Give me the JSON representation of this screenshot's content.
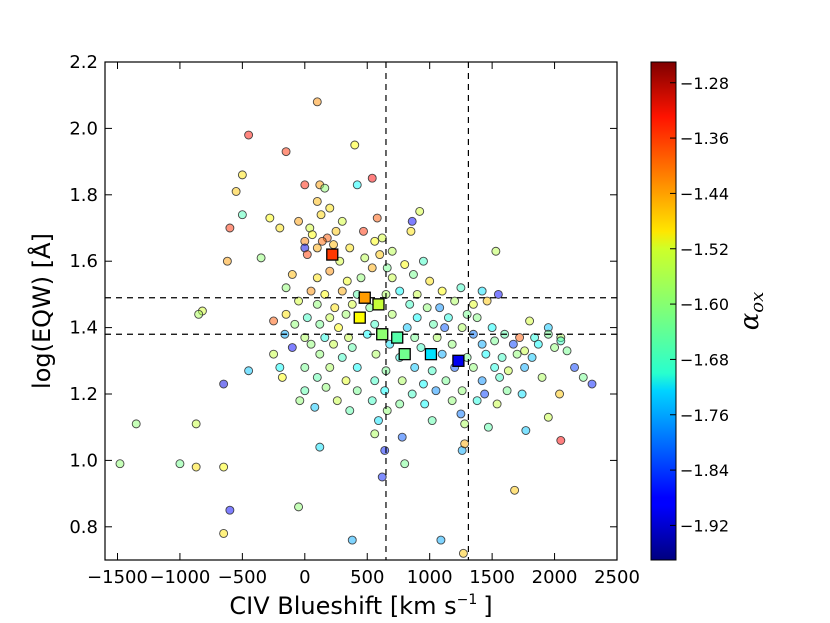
{
  "chart_data": {
    "type": "scatter",
    "xlabel": "CIV Blueshift [km s",
    "xlabel_sup": "−1",
    "xlabel_end": "]",
    "ylabel": "log(EQW) [Å]",
    "colorbar_label_main": "α",
    "colorbar_label_sub": "ox",
    "xlim": [
      -1600,
      2500
    ],
    "ylim": [
      0.7,
      2.2
    ],
    "xticks": [
      {
        "value": -1500,
        "label": "−1500"
      },
      {
        "value": -1000,
        "label": "−1000"
      },
      {
        "value": -500,
        "label": "−500"
      },
      {
        "value": 0,
        "label": "0"
      },
      {
        "value": 500,
        "label": "500"
      },
      {
        "value": 1000,
        "label": "1000"
      },
      {
        "value": 1500,
        "label": "1500"
      },
      {
        "value": 2000,
        "label": "2000"
      },
      {
        "value": 2500,
        "label": "2500"
      }
    ],
    "yticks": [
      {
        "value": 0.8,
        "label": "0.8"
      },
      {
        "value": 1.0,
        "label": "1.0"
      },
      {
        "value": 1.2,
        "label": "1.2"
      },
      {
        "value": 1.4,
        "label": "1.4"
      },
      {
        "value": 1.6,
        "label": "1.6"
      },
      {
        "value": 1.8,
        "label": "1.8"
      },
      {
        "value": 2.0,
        "label": "2.0"
      },
      {
        "value": 2.2,
        "label": "2.2"
      }
    ],
    "colorbar": {
      "range": [
        -1.97,
        -1.25
      ],
      "ticks": [
        {
          "value": -1.28,
          "label": "−1.28"
        },
        {
          "value": -1.36,
          "label": "−1.36"
        },
        {
          "value": -1.44,
          "label": "−1.44"
        },
        {
          "value": -1.52,
          "label": "−1.52"
        },
        {
          "value": -1.6,
          "label": "−1.60"
        },
        {
          "value": -1.68,
          "label": "−1.68"
        },
        {
          "value": -1.76,
          "label": "−1.76"
        },
        {
          "value": -1.84,
          "label": "−1.84"
        },
        {
          "value": -1.92,
          "label": "−1.92"
        }
      ]
    },
    "vlines_x": [
      650,
      1310
    ],
    "hlines_y": [
      1.49,
      1.38
    ],
    "binned_means": [
      {
        "x": 220,
        "y": 1.62,
        "c": -1.38
      },
      {
        "x": 480,
        "y": 1.49,
        "c": -1.45
      },
      {
        "x": 590,
        "y": 1.47,
        "c": -1.56
      },
      {
        "x": 440,
        "y": 1.43,
        "c": -1.52
      },
      {
        "x": 620,
        "y": 1.38,
        "c": -1.6
      },
      {
        "x": 740,
        "y": 1.37,
        "c": -1.64
      },
      {
        "x": 800,
        "y": 1.32,
        "c": -1.62
      },
      {
        "x": 1010,
        "y": 1.32,
        "c": -1.72
      },
      {
        "x": 1230,
        "y": 1.3,
        "c": -1.89
      }
    ],
    "points": [
      {
        "x": 100,
        "y": 2.08,
        "c": -1.44
      },
      {
        "x": -450,
        "y": 1.98,
        "c": -1.35
      },
      {
        "x": -150,
        "y": 1.93,
        "c": -1.37
      },
      {
        "x": 400,
        "y": 1.95,
        "c": -1.52
      },
      {
        "x": -500,
        "y": 1.86,
        "c": -1.5
      },
      {
        "x": 540,
        "y": 1.85,
        "c": -1.34
      },
      {
        "x": 0,
        "y": 1.83,
        "c": -1.36
      },
      {
        "x": 120,
        "y": 1.83,
        "c": -1.45
      },
      {
        "x": 160,
        "y": 1.82,
        "c": -1.6
      },
      {
        "x": 420,
        "y": 1.83,
        "c": -1.7
      },
      {
        "x": -550,
        "y": 1.81,
        "c": -1.48
      },
      {
        "x": 100,
        "y": 1.78,
        "c": -1.47
      },
      {
        "x": 200,
        "y": 1.76,
        "c": -1.5
      },
      {
        "x": -500,
        "y": 1.74,
        "c": -1.65
      },
      {
        "x": -280,
        "y": 1.73,
        "c": -1.52
      },
      {
        "x": -50,
        "y": 1.72,
        "c": -1.45
      },
      {
        "x": 40,
        "y": 1.7,
        "c": -1.55
      },
      {
        "x": 130,
        "y": 1.74,
        "c": -1.49
      },
      {
        "x": 300,
        "y": 1.72,
        "c": -1.55
      },
      {
        "x": 580,
        "y": 1.73,
        "c": -1.4
      },
      {
        "x": 860,
        "y": 1.72,
        "c": -1.88
      },
      {
        "x": 920,
        "y": 1.75,
        "c": -1.55
      },
      {
        "x": -600,
        "y": 1.7,
        "c": -1.37
      },
      {
        "x": -200,
        "y": 1.7,
        "c": -1.5
      },
      {
        "x": 60,
        "y": 1.68,
        "c": -1.52
      },
      {
        "x": 180,
        "y": 1.67,
        "c": -1.4
      },
      {
        "x": 250,
        "y": 1.69,
        "c": -1.48
      },
      {
        "x": 470,
        "y": 1.69,
        "c": -1.37
      },
      {
        "x": 620,
        "y": 1.67,
        "c": -1.55
      },
      {
        "x": 850,
        "y": 1.69,
        "c": -1.5
      },
      {
        "x": 0,
        "y": 1.66,
        "c": -1.43
      },
      {
        "x": 100,
        "y": 1.64,
        "c": -1.46
      },
      {
        "x": 140,
        "y": 1.66,
        "c": -1.41
      },
      {
        "x": 230,
        "y": 1.65,
        "c": -1.47
      },
      {
        "x": 360,
        "y": 1.64,
        "c": -1.5
      },
      {
        "x": 560,
        "y": 1.66,
        "c": -1.52
      },
      {
        "x": 600,
        "y": 1.62,
        "c": -1.48
      },
      {
        "x": 700,
        "y": 1.63,
        "c": -1.57
      },
      {
        "x": -620,
        "y": 1.6,
        "c": -1.45
      },
      {
        "x": -350,
        "y": 1.61,
        "c": -1.6
      },
      {
        "x": 0,
        "y": 1.64,
        "c": -1.9
      },
      {
        "x": 20,
        "y": 1.62,
        "c": -1.38
      },
      {
        "x": 280,
        "y": 1.6,
        "c": -1.55
      },
      {
        "x": 480,
        "y": 1.61,
        "c": -1.57
      },
      {
        "x": 540,
        "y": 1.58,
        "c": -1.46
      },
      {
        "x": 660,
        "y": 1.58,
        "c": -1.62
      },
      {
        "x": 800,
        "y": 1.59,
        "c": -1.52
      },
      {
        "x": 950,
        "y": 1.6,
        "c": -1.66
      },
      {
        "x": 1530,
        "y": 1.63,
        "c": -1.57
      },
      {
        "x": -100,
        "y": 1.56,
        "c": -1.47
      },
      {
        "x": 100,
        "y": 1.55,
        "c": -1.5
      },
      {
        "x": 200,
        "y": 1.57,
        "c": -1.44
      },
      {
        "x": 340,
        "y": 1.54,
        "c": -1.53
      },
      {
        "x": 450,
        "y": 1.55,
        "c": -1.6
      },
      {
        "x": 700,
        "y": 1.55,
        "c": -1.56
      },
      {
        "x": 870,
        "y": 1.56,
        "c": -1.62
      },
      {
        "x": 1000,
        "y": 1.54,
        "c": -1.5
      },
      {
        "x": -150,
        "y": 1.52,
        "c": -1.6
      },
      {
        "x": 50,
        "y": 1.51,
        "c": -1.44
      },
      {
        "x": 160,
        "y": 1.5,
        "c": -1.52
      },
      {
        "x": 300,
        "y": 1.51,
        "c": -1.46
      },
      {
        "x": 420,
        "y": 1.5,
        "c": -1.64
      },
      {
        "x": 650,
        "y": 1.5,
        "c": -1.58
      },
      {
        "x": 760,
        "y": 1.51,
        "c": -1.7
      },
      {
        "x": 900,
        "y": 1.5,
        "c": -1.56
      },
      {
        "x": 1100,
        "y": 1.51,
        "c": -1.52
      },
      {
        "x": 1250,
        "y": 1.52,
        "c": -1.66
      },
      {
        "x": 1420,
        "y": 1.51,
        "c": -1.72
      },
      {
        "x": 1550,
        "y": 1.5,
        "c": -1.88
      },
      {
        "x": 1200,
        "y": 1.48,
        "c": -1.58
      },
      {
        "x": 1350,
        "y": 1.47,
        "c": -1.54
      },
      {
        "x": 1460,
        "y": 1.48,
        "c": -1.48
      },
      {
        "x": -50,
        "y": 1.48,
        "c": -1.55
      },
      {
        "x": 100,
        "y": 1.47,
        "c": -1.6
      },
      {
        "x": 240,
        "y": 1.46,
        "c": -1.5
      },
      {
        "x": 380,
        "y": 1.47,
        "c": -1.55
      },
      {
        "x": 520,
        "y": 1.46,
        "c": -1.62
      },
      {
        "x": 840,
        "y": 1.47,
        "c": -1.66
      },
      {
        "x": 980,
        "y": 1.46,
        "c": -1.6
      },
      {
        "x": 1080,
        "y": 1.46,
        "c": -1.78
      },
      {
        "x": 1300,
        "y": 1.44,
        "c": -1.62
      },
      {
        "x": -820,
        "y": 1.45,
        "c": -1.55
      },
      {
        "x": -850,
        "y": 1.44,
        "c": -1.58
      },
      {
        "x": -150,
        "y": 1.44,
        "c": -1.5
      },
      {
        "x": 20,
        "y": 1.43,
        "c": -1.66
      },
      {
        "x": 200,
        "y": 1.43,
        "c": -1.56
      },
      {
        "x": 330,
        "y": 1.44,
        "c": -1.59
      },
      {
        "x": 700,
        "y": 1.44,
        "c": -1.58
      },
      {
        "x": 900,
        "y": 1.43,
        "c": -1.7
      },
      {
        "x": 1150,
        "y": 1.43,
        "c": -1.68
      },
      {
        "x": 1380,
        "y": 1.43,
        "c": -1.61
      },
      {
        "x": -250,
        "y": 1.42,
        "c": -1.4
      },
      {
        "x": -80,
        "y": 1.41,
        "c": -1.6
      },
      {
        "x": 120,
        "y": 1.41,
        "c": -1.62
      },
      {
        "x": 270,
        "y": 1.4,
        "c": -1.52
      },
      {
        "x": 560,
        "y": 1.41,
        "c": -1.66
      },
      {
        "x": 820,
        "y": 1.4,
        "c": -1.74
      },
      {
        "x": 1030,
        "y": 1.41,
        "c": -1.64
      },
      {
        "x": 1120,
        "y": 1.4,
        "c": -1.82
      },
      {
        "x": 1260,
        "y": 1.4,
        "c": -1.58
      },
      {
        "x": 1500,
        "y": 1.4,
        "c": -1.7
      },
      {
        "x": 1950,
        "y": 1.4,
        "c": -1.74
      },
      {
        "x": 1800,
        "y": 1.42,
        "c": -1.55
      },
      {
        "x": -160,
        "y": 1.38,
        "c": -1.76
      },
      {
        "x": 0,
        "y": 1.37,
        "c": -1.58
      },
      {
        "x": 160,
        "y": 1.37,
        "c": -1.68
      },
      {
        "x": 350,
        "y": 1.37,
        "c": -1.56
      },
      {
        "x": 500,
        "y": 1.38,
        "c": -1.7
      },
      {
        "x": 880,
        "y": 1.37,
        "c": -1.62
      },
      {
        "x": 1060,
        "y": 1.37,
        "c": -1.58
      },
      {
        "x": 1350,
        "y": 1.38,
        "c": -1.8
      },
      {
        "x": 1600,
        "y": 1.38,
        "c": -1.64
      },
      {
        "x": 1720,
        "y": 1.37,
        "c": -1.4
      },
      {
        "x": 1840,
        "y": 1.37,
        "c": -1.68
      },
      {
        "x": 1950,
        "y": 1.38,
        "c": -1.62
      },
      {
        "x": 2050,
        "y": 1.37,
        "c": -1.58
      },
      {
        "x": -100,
        "y": 1.34,
        "c": -1.88
      },
      {
        "x": 50,
        "y": 1.35,
        "c": -1.6
      },
      {
        "x": 230,
        "y": 1.35,
        "c": -1.56
      },
      {
        "x": 380,
        "y": 1.34,
        "c": -1.64
      },
      {
        "x": 680,
        "y": 1.35,
        "c": -1.72
      },
      {
        "x": 930,
        "y": 1.34,
        "c": -1.66
      },
      {
        "x": 1180,
        "y": 1.35,
        "c": -1.6
      },
      {
        "x": 1420,
        "y": 1.35,
        "c": -1.76
      },
      {
        "x": 1520,
        "y": 1.36,
        "c": -1.62
      },
      {
        "x": 1670,
        "y": 1.35,
        "c": -1.84
      },
      {
        "x": 1760,
        "y": 1.33,
        "c": -1.56
      },
      {
        "x": 1870,
        "y": 1.35,
        "c": -1.7
      },
      {
        "x": 2000,
        "y": 1.34,
        "c": -1.6
      },
      {
        "x": 2050,
        "y": 1.36,
        "c": -1.66
      },
      {
        "x": -250,
        "y": 1.32,
        "c": -1.56
      },
      {
        "x": 120,
        "y": 1.32,
        "c": -1.6
      },
      {
        "x": 300,
        "y": 1.31,
        "c": -1.66
      },
      {
        "x": 570,
        "y": 1.32,
        "c": -1.58
      },
      {
        "x": 760,
        "y": 1.31,
        "c": -1.68
      },
      {
        "x": 1100,
        "y": 1.32,
        "c": -1.76
      },
      {
        "x": 1300,
        "y": 1.31,
        "c": -1.62
      },
      {
        "x": 1450,
        "y": 1.32,
        "c": -1.7
      },
      {
        "x": 1580,
        "y": 1.31,
        "c": -1.66
      },
      {
        "x": 1700,
        "y": 1.32,
        "c": -1.6
      },
      {
        "x": 1820,
        "y": 1.31,
        "c": -1.74
      },
      {
        "x": 2100,
        "y": 1.33,
        "c": -1.62
      },
      {
        "x": -200,
        "y": 1.28,
        "c": -1.7
      },
      {
        "x": 0,
        "y": 1.28,
        "c": -1.62
      },
      {
        "x": 200,
        "y": 1.28,
        "c": -1.58
      },
      {
        "x": 420,
        "y": 1.28,
        "c": -1.7
      },
      {
        "x": 650,
        "y": 1.27,
        "c": -1.62
      },
      {
        "x": 880,
        "y": 1.28,
        "c": -1.74
      },
      {
        "x": 1020,
        "y": 1.27,
        "c": -1.66
      },
      {
        "x": 1200,
        "y": 1.28,
        "c": -1.82
      },
      {
        "x": 1350,
        "y": 1.28,
        "c": -1.6
      },
      {
        "x": 1520,
        "y": 1.28,
        "c": -1.68
      },
      {
        "x": 1630,
        "y": 1.27,
        "c": -1.56
      },
      {
        "x": 1760,
        "y": 1.28,
        "c": -1.76
      },
      {
        "x": 2160,
        "y": 1.28,
        "c": -1.84
      },
      {
        "x": 2230,
        "y": 1.25,
        "c": -1.62
      },
      {
        "x": 2300,
        "y": 1.23,
        "c": -1.86
      },
      {
        "x": -450,
        "y": 1.27,
        "c": -1.74
      },
      {
        "x": -650,
        "y": 1.23,
        "c": -1.9
      },
      {
        "x": -180,
        "y": 1.25,
        "c": -1.52
      },
      {
        "x": 100,
        "y": 1.25,
        "c": -1.64
      },
      {
        "x": 330,
        "y": 1.24,
        "c": -1.54
      },
      {
        "x": 560,
        "y": 1.24,
        "c": -1.66
      },
      {
        "x": 780,
        "y": 1.24,
        "c": -1.58
      },
      {
        "x": 950,
        "y": 1.23,
        "c": -1.7
      },
      {
        "x": 1130,
        "y": 1.24,
        "c": -1.62
      },
      {
        "x": 1420,
        "y": 1.24,
        "c": -1.78
      },
      {
        "x": 1560,
        "y": 1.25,
        "c": -1.66
      },
      {
        "x": 1900,
        "y": 1.25,
        "c": -1.58
      },
      {
        "x": 0,
        "y": 1.21,
        "c": -1.64
      },
      {
        "x": 170,
        "y": 1.22,
        "c": -1.6
      },
      {
        "x": 420,
        "y": 1.21,
        "c": -1.62
      },
      {
        "x": 640,
        "y": 1.21,
        "c": -1.7
      },
      {
        "x": 860,
        "y": 1.2,
        "c": -1.66
      },
      {
        "x": 1050,
        "y": 1.21,
        "c": -1.78
      },
      {
        "x": 1260,
        "y": 1.21,
        "c": -1.6
      },
      {
        "x": 1440,
        "y": 1.2,
        "c": -1.84
      },
      {
        "x": 1620,
        "y": 1.21,
        "c": -1.62
      },
      {
        "x": 1740,
        "y": 1.2,
        "c": -1.72
      },
      {
        "x": 2040,
        "y": 1.2,
        "c": -1.48
      },
      {
        "x": -40,
        "y": 1.18,
        "c": -1.6
      },
      {
        "x": 260,
        "y": 1.18,
        "c": -1.56
      },
      {
        "x": 540,
        "y": 1.18,
        "c": -1.66
      },
      {
        "x": 760,
        "y": 1.17,
        "c": -1.62
      },
      {
        "x": 960,
        "y": 1.17,
        "c": -1.7
      },
      {
        "x": 1180,
        "y": 1.18,
        "c": -1.6
      },
      {
        "x": 1380,
        "y": 1.18,
        "c": -1.68
      },
      {
        "x": 1540,
        "y": 1.17,
        "c": -1.56
      },
      {
        "x": 80,
        "y": 1.16,
        "c": -1.74
      },
      {
        "x": 360,
        "y": 1.15,
        "c": -1.64
      },
      {
        "x": 660,
        "y": 1.15,
        "c": -1.6
      },
      {
        "x": 1250,
        "y": 1.14,
        "c": -1.8
      },
      {
        "x": -1350,
        "y": 1.11,
        "c": -1.6
      },
      {
        "x": -870,
        "y": 1.11,
        "c": -1.56
      },
      {
        "x": 590,
        "y": 1.12,
        "c": -1.72
      },
      {
        "x": 1020,
        "y": 1.12,
        "c": -1.64
      },
      {
        "x": 1280,
        "y": 1.11,
        "c": -1.58
      },
      {
        "x": 1470,
        "y": 1.1,
        "c": -1.64
      },
      {
        "x": 1950,
        "y": 1.13,
        "c": -1.56
      },
      {
        "x": 560,
        "y": 1.08,
        "c": -1.58
      },
      {
        "x": 780,
        "y": 1.07,
        "c": -1.82
      },
      {
        "x": 1770,
        "y": 1.09,
        "c": -1.74
      },
      {
        "x": 2050,
        "y": 1.06,
        "c": -1.34
      },
      {
        "x": 120,
        "y": 1.04,
        "c": -1.72
      },
      {
        "x": 640,
        "y": 1.03,
        "c": -1.86
      },
      {
        "x": 1260,
        "y": 1.03,
        "c": -1.76
      },
      {
        "x": 1280,
        "y": 1.05,
        "c": -1.46
      },
      {
        "x": -1480,
        "y": 0.99,
        "c": -1.6
      },
      {
        "x": -1000,
        "y": 0.99,
        "c": -1.62
      },
      {
        "x": 800,
        "y": 0.99,
        "c": -1.62
      },
      {
        "x": -870,
        "y": 0.98,
        "c": -1.5
      },
      {
        "x": -650,
        "y": 0.98,
        "c": -1.52
      },
      {
        "x": 620,
        "y": 0.95,
        "c": -1.86
      },
      {
        "x": 1680,
        "y": 0.91,
        "c": -1.48
      },
      {
        "x": -50,
        "y": 0.86,
        "c": -1.6
      },
      {
        "x": -600,
        "y": 0.85,
        "c": -1.88
      },
      {
        "x": -650,
        "y": 0.78,
        "c": -1.5
      },
      {
        "x": 380,
        "y": 0.76,
        "c": -1.76
      },
      {
        "x": 1090,
        "y": 0.76,
        "c": -1.76
      },
      {
        "x": 1270,
        "y": 0.72,
        "c": -1.48
      }
    ]
  }
}
